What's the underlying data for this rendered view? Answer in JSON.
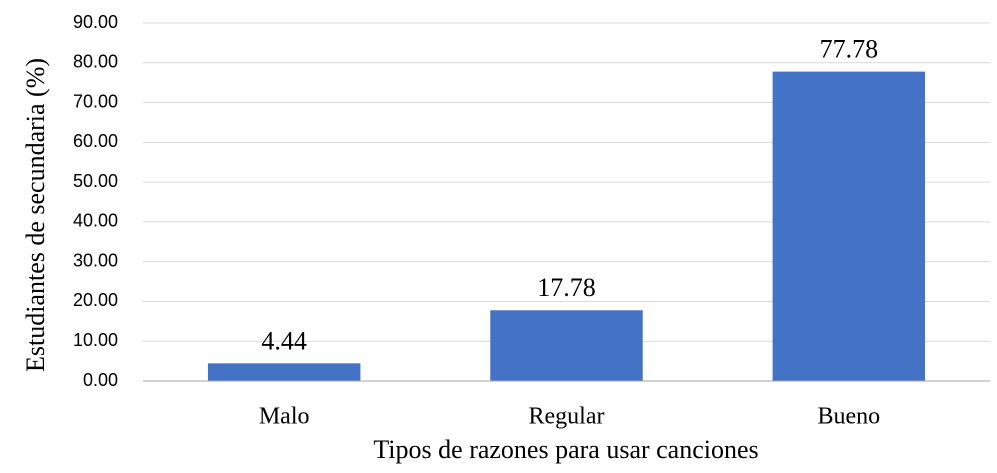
{
  "chart_data": {
    "type": "bar",
    "xlabel": "Tipos de razones para usar canciones",
    "ylabel": "Estudiantes de secundaria (%)",
    "categories": [
      "Malo",
      "Regular",
      "Bueno"
    ],
    "values": [
      4.44,
      17.78,
      77.78
    ],
    "color": "#4472c4",
    "ylim": [
      0,
      90
    ],
    "yticks": [
      {
        "value": 0,
        "label": "0.00"
      },
      {
        "value": 10,
        "label": "10.00"
      },
      {
        "value": 20,
        "label": "20.00"
      },
      {
        "value": 30,
        "label": "30.00"
      },
      {
        "value": 40,
        "label": "40.00"
      },
      {
        "value": 50,
        "label": "50.00"
      },
      {
        "value": 60,
        "label": "60.00"
      },
      {
        "value": 70,
        "label": "70.00"
      },
      {
        "value": 80,
        "label": "80.00"
      },
      {
        "value": 90,
        "label": "90.00"
      }
    ],
    "grid": true
  }
}
